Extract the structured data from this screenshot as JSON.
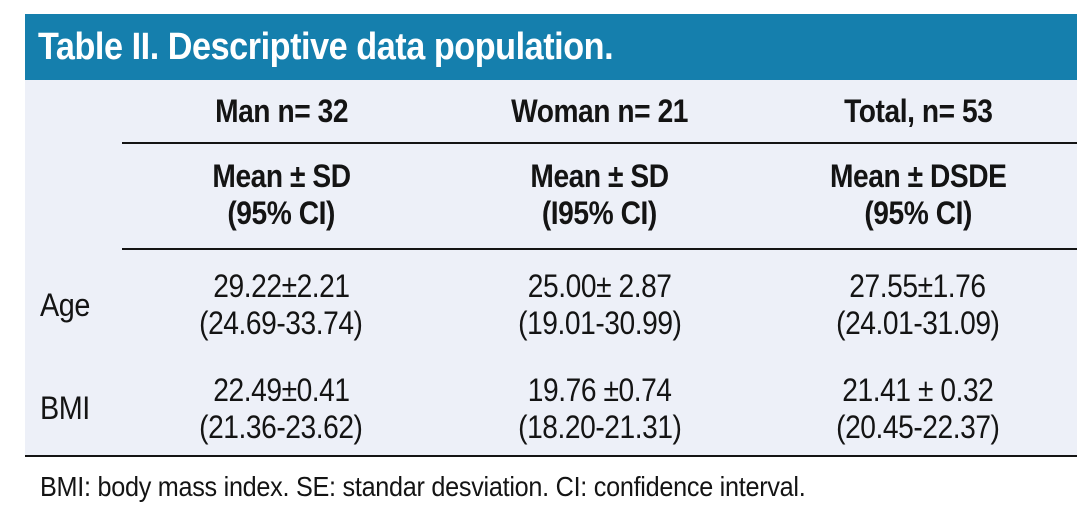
{
  "title": "Table II. Descriptive data population.",
  "table": {
    "columns": [
      {
        "label": "Man n= 32",
        "sub1": "Mean ± SD",
        "sub2": "(95% CI)"
      },
      {
        "label": "Woman n= 21",
        "sub1": "Mean ± SD",
        "sub2": "(I95% CI)"
      },
      {
        "label": "Total, n= 53",
        "sub1": "Mean ± DSDE",
        "sub2": "(95% CI)"
      }
    ],
    "rows": [
      {
        "label": "Age",
        "cells": [
          {
            "mean": "29.22±2.21",
            "ci": "(24.69-33.74)"
          },
          {
            "mean": "25.00± 2.87",
            "ci": "(19.01-30.99)"
          },
          {
            "mean": "27.55±1.76",
            "ci": "(24.01-31.09)"
          }
        ]
      },
      {
        "label": "BMI",
        "cells": [
          {
            "mean": "22.49±0.41",
            "ci": "(21.36-23.62)"
          },
          {
            "mean": "19.76 ±0.74",
            "ci": "(18.20-21.31)"
          },
          {
            "mean": "21.41 ± 0.32",
            "ci": "(20.45-22.37)"
          }
        ]
      }
    ],
    "footnote": "BMI: body mass index. SE: standar desviation. CI: confidence interval."
  },
  "colors": {
    "header_bg": "#157fad",
    "body_bg": "#edf0f8",
    "title_text": "#ffffff",
    "text": "#141414",
    "rule": "#141414",
    "page_bg": "#ffffff"
  },
  "chart_data": {
    "type": "table",
    "title": "Table II. Descriptive data population.",
    "columns": [
      "",
      "Man n= 32",
      "Woman n= 21",
      "Total, n= 53"
    ],
    "subheader": [
      "",
      "Mean ± SD (95% CI)",
      "Mean ± SD (I95% CI)",
      "Mean ± DSDE (95% CI)"
    ],
    "rows": [
      [
        "Age",
        "29.22±2.21 (24.69-33.74)",
        "25.00± 2.87 (19.01-30.99)",
        "27.55±1.76 (24.01-31.09)"
      ],
      [
        "BMI",
        "22.49±0.41 (21.36-23.62)",
        "19.76 ±0.74 (18.20-21.31)",
        "21.41 ± 0.32 (20.45-22.37)"
      ]
    ],
    "footnote": "BMI: body mass index. SE: standar desviation. CI: confidence interval."
  }
}
